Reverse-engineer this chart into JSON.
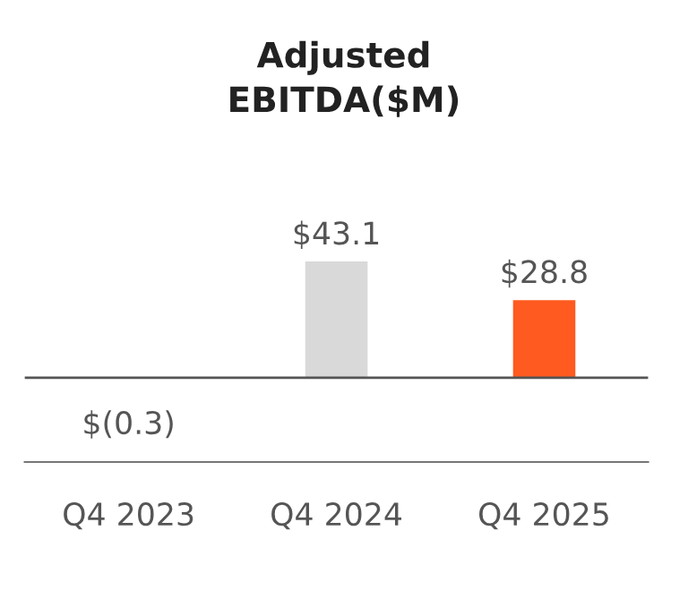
{
  "chart_data": {
    "type": "bar",
    "title": "Adjusted\nEBITDA($M)",
    "categories": [
      "Q4 2023",
      "Q4 2024",
      "Q4 2025"
    ],
    "values": [
      -0.3,
      43.1,
      28.8
    ],
    "colors": [
      "#d9d9d9",
      "#d9d9d9",
      "#ff5a1f"
    ],
    "value_labels": [
      "$(0.3)",
      "$43.1",
      "$28.8"
    ],
    "grid": false,
    "legend": false
  }
}
